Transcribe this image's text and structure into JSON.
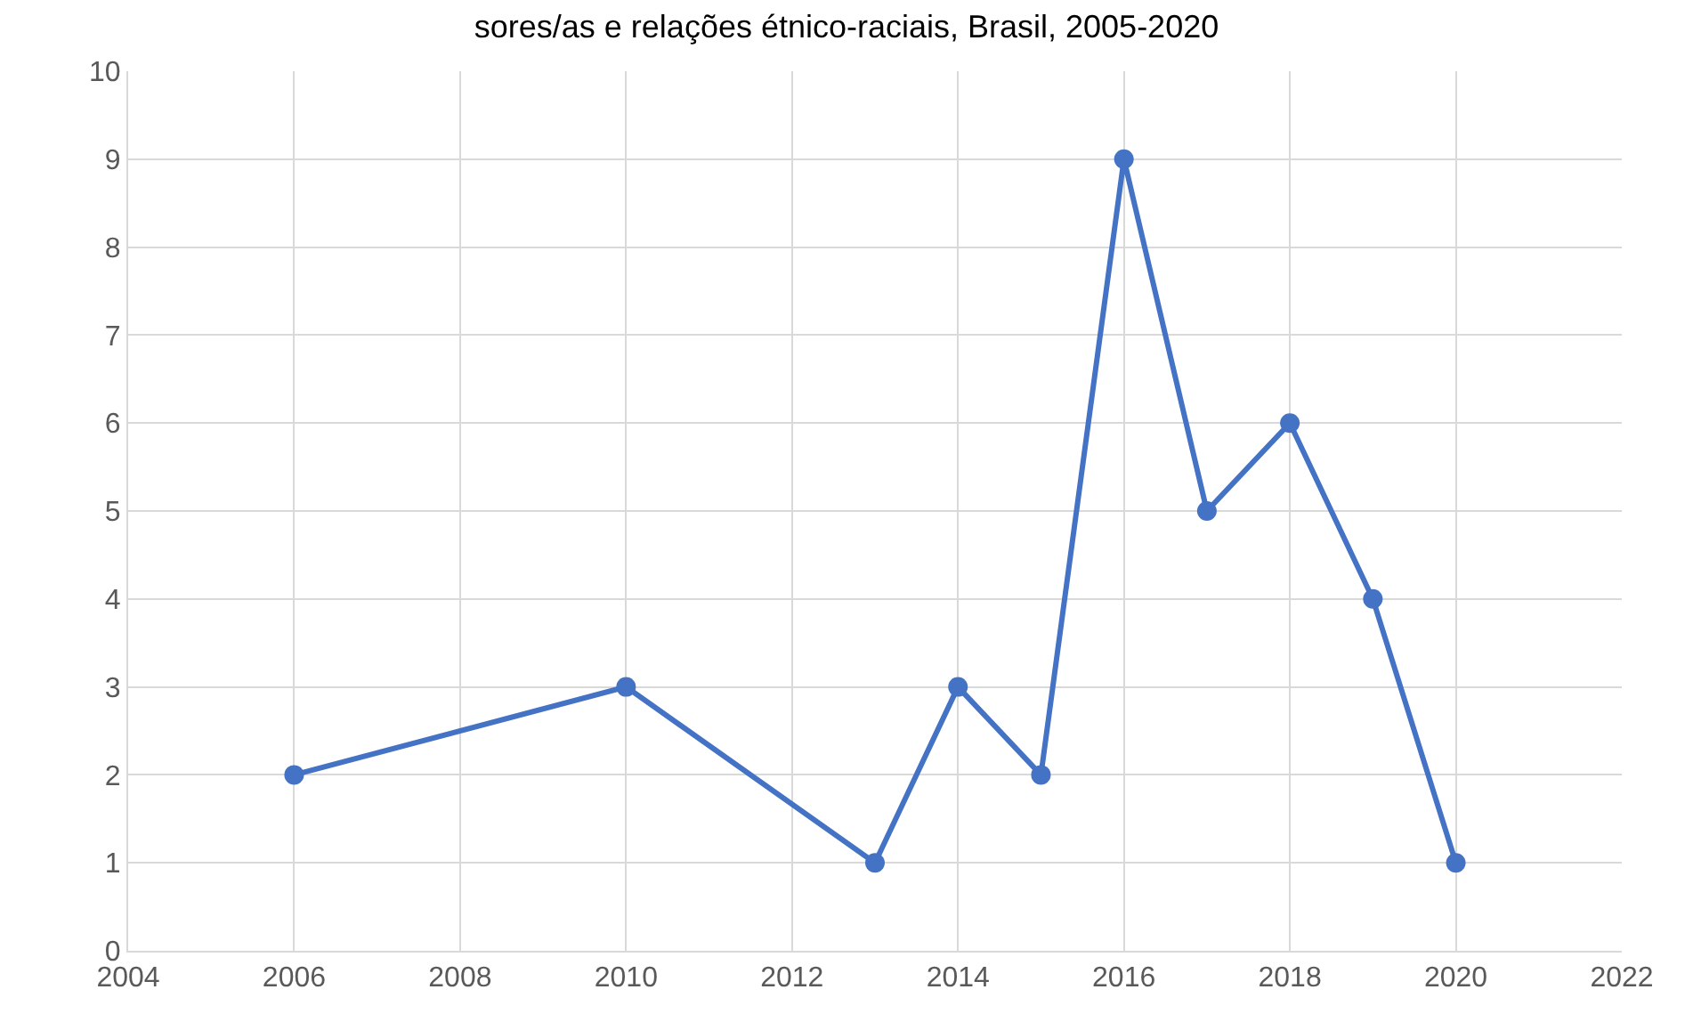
{
  "chart_data": {
    "type": "line",
    "title": "sores/as e relações étnico-raciais, Brasil, 2005-2020",
    "x": [
      2006,
      2010,
      2013,
      2014,
      2015,
      2016,
      2017,
      2018,
      2019,
      2020
    ],
    "series": [
      {
        "color": "#4472c4",
        "values": [
          2,
          3,
          1,
          3,
          2,
          9,
          5,
          6,
          4,
          1
        ]
      }
    ],
    "xlim": [
      2004,
      2022
    ],
    "xticks": [
      2004,
      2006,
      2008,
      2010,
      2012,
      2014,
      2016,
      2018,
      2020,
      2022
    ],
    "ylim": [
      0,
      10
    ],
    "yticks": [
      0,
      1,
      2,
      3,
      4,
      5,
      6,
      7,
      8,
      9,
      10
    ],
    "grid": true,
    "marker": "circle",
    "line_style": "solid"
  }
}
